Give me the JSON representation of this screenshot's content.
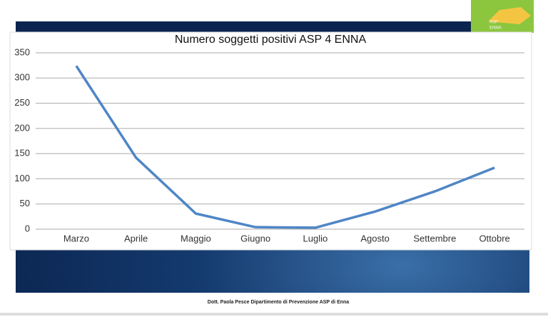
{
  "chart_data": {
    "type": "line",
    "title": "Numero soggetti positivi  ASP 4 ENNA",
    "categories": [
      "Marzo",
      "Aprile",
      "Maggio",
      "Giugno",
      "Luglio",
      "Agosto",
      "Settembre",
      "Ottobre"
    ],
    "values": [
      324,
      142,
      31,
      4,
      3,
      35,
      75,
      122
    ],
    "color": "#4f86c6",
    "ylim": [
      0,
      350
    ],
    "yticks": [
      0,
      50,
      100,
      150,
      200,
      250,
      300,
      350
    ],
    "grid": true
  },
  "slide": {
    "logo_text": [
      "ASP",
      "ENNA"
    ],
    "footer": "Dott. Paola Pesce Dipartimento di Prevenzione ASP di Enna"
  }
}
